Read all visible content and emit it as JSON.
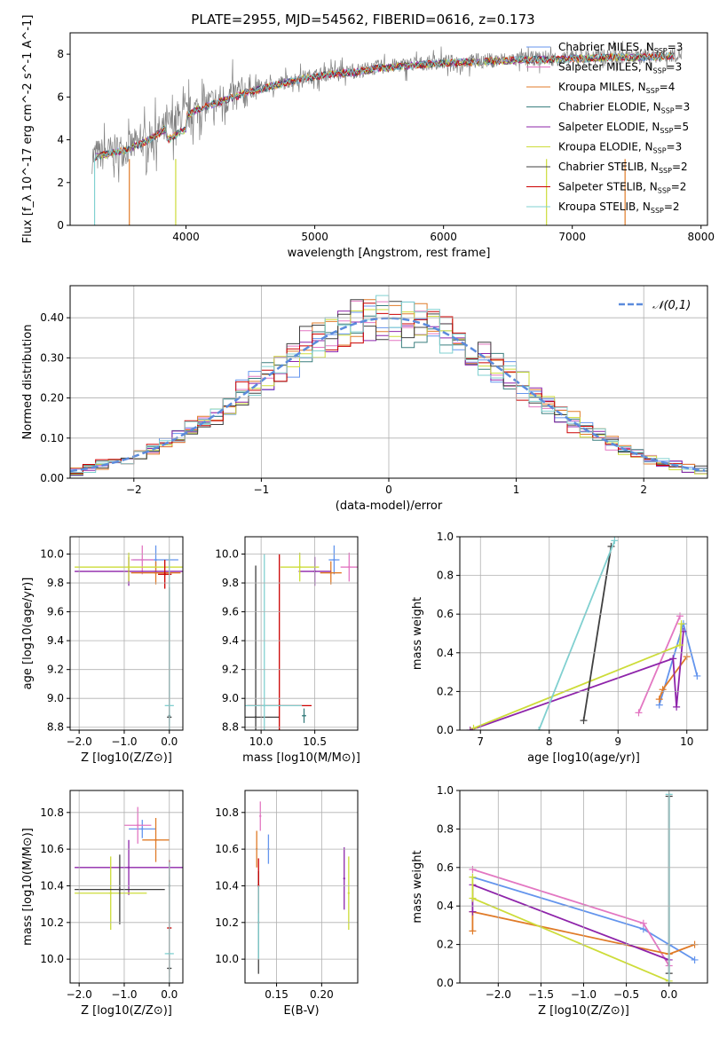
{
  "colors": {
    "Chabrier MILES": "#6495ed",
    "Salpeter MILES": "#e377c2",
    "Kroupa MILES": "#e07b28",
    "Chabrier ELODIE": "#3a7f7f",
    "Salpeter ELODIE": "#8e24aa",
    "Kroupa ELODIE": "#cddc39",
    "Chabrier STELIB": "#404040",
    "Salpeter STELIB": "#cc0000",
    "Kroupa STELIB": "#80d0d0",
    "data": "#808080"
  },
  "chart_data": [
    {
      "id": "spectrum",
      "type": "line",
      "title": "PLATE=2955, MJD=54562, FIBERID=0616, z=0.173",
      "xlabel": "wavelength [Angstrom, rest frame]",
      "ylabel": "Flux [f_λ 10^-17 erg cm^-2 s^-1 A^-1]",
      "xlim": [
        3100,
        8050
      ],
      "ylim": [
        0,
        9
      ],
      "xticks": [
        4000,
        5000,
        6000,
        7000,
        8000
      ],
      "yticks": [
        0,
        2,
        4,
        6,
        8
      ],
      "grid": false,
      "legend_position": "right",
      "data_envelope": {
        "x": [
          3270,
          3400,
          3550,
          3700,
          3900,
          4100,
          4300,
          4500,
          4700,
          4900,
          5100,
          5300,
          5500,
          5700,
          5900,
          6100,
          6300,
          6500,
          6700,
          6900,
          7100,
          7300,
          7500,
          7700,
          7850
        ],
        "y": [
          3.2,
          3.4,
          3.6,
          4.0,
          4.8,
          5.5,
          5.9,
          6.3,
          6.6,
          6.9,
          7.1,
          7.2,
          7.4,
          7.5,
          7.6,
          7.65,
          7.7,
          7.75,
          7.8,
          7.8,
          7.85,
          7.9,
          7.9,
          7.95,
          8.0
        ]
      },
      "series": [
        {
          "name": "Chabrier MILES",
          "nssp": "3"
        },
        {
          "name": "Salpeter MILES",
          "nssp": "3"
        },
        {
          "name": "Kroupa MILES",
          "nssp": "4"
        },
        {
          "name": "Chabrier ELODIE",
          "nssp": "3"
        },
        {
          "name": "Salpeter ELODIE",
          "nssp": "5"
        },
        {
          "name": "Kroupa ELODIE",
          "nssp": "3"
        },
        {
          "name": "Chabrier STELIB",
          "nssp": "2"
        },
        {
          "name": "Salpeter STELIB",
          "nssp": "2"
        },
        {
          "name": "Kroupa STELIB",
          "nssp": "2"
        }
      ]
    },
    {
      "id": "hist",
      "type": "bar",
      "xlabel": "(data-model)/error",
      "ylabel": "Normed distribution",
      "xlim": [
        -2.5,
        2.5
      ],
      "ylim": [
        0,
        0.48
      ],
      "xticks": [
        -2,
        -1,
        0,
        1,
        2
      ],
      "yticks": [
        0.0,
        0.1,
        0.2,
        0.3,
        0.4
      ],
      "grid": true,
      "legend_position": "top-right",
      "legend": [
        "𝒩(0,1)"
      ],
      "bin_width": 0.1,
      "gaussian": {
        "mean": 0,
        "sigma": 1
      }
    },
    {
      "id": "age_vs_Z",
      "type": "scatter",
      "xlabel": "Z [log10(Z/Z⊙)]",
      "ylabel": "age  [log10(age/yr)]",
      "xlim": [
        -2.2,
        0.3
      ],
      "ylim": [
        8.78,
        10.12
      ],
      "xticks": [
        -2,
        -1,
        0
      ],
      "yticks": [
        8.8,
        9.0,
        9.2,
        9.4,
        9.6,
        9.8,
        10.0
      ],
      "grid": true,
      "points": [
        {
          "series": "Chabrier MILES",
          "x": -0.3,
          "y": 9.96,
          "xerr": 0.5,
          "yerr": 0.1
        },
        {
          "series": "Salpeter MILES",
          "x": -0.6,
          "y": 9.96,
          "xerr": 0.25,
          "yerr": 0.1
        },
        {
          "series": "Kroupa MILES",
          "x": -0.3,
          "y": 9.87,
          "xerr": 0.55,
          "yerr": 0.08
        },
        {
          "series": "Chabrier ELODIE",
          "x": 0.0,
          "y": 8.88,
          "xerr": 0.02,
          "yerr": 0.05
        },
        {
          "series": "Salpeter ELODIE",
          "x": -0.9,
          "y": 9.88,
          "xerr": 1.2,
          "yerr": 0.1
        },
        {
          "series": "Kroupa ELODIE",
          "x": -0.9,
          "y": 9.91,
          "xerr": 1.2,
          "yerr": 0.1
        },
        {
          "series": "Chabrier STELIB",
          "x": 0.0,
          "y": 8.87,
          "xerr": 0.05,
          "yerr": 0.9
        },
        {
          "series": "Salpeter STELIB",
          "x": -0.1,
          "y": 9.86,
          "xerr": 0.15,
          "yerr": 0.1
        },
        {
          "series": "Kroupa STELIB",
          "x": 0.0,
          "y": 8.95,
          "xerr": 0.1,
          "yerr": 1.05
        }
      ]
    },
    {
      "id": "age_vs_mass",
      "type": "scatter",
      "xlabel": "mass [log10(M/M⊙)]",
      "xlim": [
        9.85,
        10.9
      ],
      "ylim": [
        8.78,
        10.12
      ],
      "xticks": [
        10.0,
        10.5
      ],
      "yticks": [
        8.8,
        9.0,
        9.2,
        9.4,
        9.6,
        9.8,
        10.0
      ],
      "grid": true,
      "points": [
        {
          "series": "Chabrier MILES",
          "x": 10.68,
          "y": 9.96,
          "xerr": 0.05,
          "yerr": 0.1
        },
        {
          "series": "Salpeter MILES",
          "x": 10.82,
          "y": 9.91,
          "xerr": 0.08,
          "yerr": 0.1
        },
        {
          "series": "Kroupa MILES",
          "x": 10.65,
          "y": 9.87,
          "xerr": 0.1,
          "yerr": 0.08
        },
        {
          "series": "Chabrier ELODIE",
          "x": 10.4,
          "y": 8.88,
          "xerr": 0.02,
          "yerr": 0.05
        },
        {
          "series": "Salpeter ELODIE",
          "x": 10.5,
          "y": 9.88,
          "xerr": 0.15,
          "yerr": 0.1
        },
        {
          "series": "Kroupa ELODIE",
          "x": 10.36,
          "y": 9.91,
          "xerr": 0.18,
          "yerr": 0.1
        },
        {
          "series": "Chabrier STELIB",
          "x": 9.95,
          "y": 8.87,
          "xerr": 0.22,
          "yerr": 1.05
        },
        {
          "series": "Salpeter STELIB",
          "x": 10.17,
          "y": 8.95,
          "xerr": 0.3,
          "yerr": 1.05
        },
        {
          "series": "Kroupa STELIB",
          "x": 10.03,
          "y": 8.95,
          "xerr": 0.35,
          "yerr": 1.05
        }
      ]
    },
    {
      "id": "weight_vs_age",
      "type": "line",
      "xlabel": "age  [log10(age/yr)]",
      "ylabel": "mass weight",
      "xlim": [
        6.7,
        10.3
      ],
      "ylim": [
        0,
        1
      ],
      "xticks": [
        7,
        8,
        9,
        10
      ],
      "yticks": [
        0.0,
        0.2,
        0.4,
        0.6,
        0.8,
        1.0
      ],
      "grid": true,
      "series": [
        {
          "name": "Chabrier MILES",
          "x": [
            9.6,
            9.95,
            10.15
          ],
          "y": [
            0.13,
            0.55,
            0.28
          ]
        },
        {
          "name": "Salpeter MILES",
          "x": [
            9.3,
            9.9
          ],
          "y": [
            0.09,
            0.59
          ]
        },
        {
          "name": "Kroupa MILES",
          "x": [
            9.6,
            9.65,
            10.0
          ],
          "y": [
            0.16,
            0.21,
            0.38
          ]
        },
        {
          "name": "Salpeter ELODIE",
          "x": [
            6.85,
            9.8,
            9.85,
            9.95
          ],
          "y": [
            0.0,
            0.37,
            0.12,
            0.51
          ]
        },
        {
          "name": "Kroupa ELODIE",
          "x": [
            6.9,
            9.9,
            9.92
          ],
          "y": [
            0.01,
            0.44,
            0.55
          ]
        },
        {
          "name": "Chabrier STELIB",
          "x": [
            8.5,
            8.9
          ],
          "y": [
            0.05,
            0.95
          ]
        },
        {
          "name": "Kroupa STELIB",
          "x": [
            7.85,
            8.95
          ],
          "y": [
            0.0,
            0.98
          ]
        }
      ]
    },
    {
      "id": "mass_vs_Z",
      "type": "scatter",
      "xlabel": "Z [log10(Z/Z⊙)]",
      "ylabel": "mass [log10(M/M⊙)]",
      "xlim": [
        -2.2,
        0.3
      ],
      "ylim": [
        9.87,
        10.92
      ],
      "xticks": [
        -2,
        -1,
        0
      ],
      "yticks": [
        10.0,
        10.2,
        10.4,
        10.6,
        10.8
      ],
      "grid": true,
      "points": [
        {
          "series": "Chabrier MILES",
          "x": -0.6,
          "y": 10.71,
          "xerr": 0.3,
          "yerr": 0.05
        },
        {
          "series": "Salpeter MILES",
          "x": -0.7,
          "y": 10.73,
          "xerr": 0.3,
          "yerr": 0.1
        },
        {
          "series": "Kroupa MILES",
          "x": -0.3,
          "y": 10.65,
          "xerr": 0.3,
          "yerr": 0.12
        },
        {
          "series": "Chabrier ELODIE",
          "x": 0.0,
          "y": 10.4,
          "xerr": 0.02,
          "yerr": 0.05
        },
        {
          "series": "Salpeter ELODIE",
          "x": -0.9,
          "y": 10.5,
          "xerr": 1.2,
          "yerr": 0.15
        },
        {
          "series": "Kroupa ELODIE",
          "x": -1.3,
          "y": 10.36,
          "xerr": 0.8,
          "yerr": 0.2
        },
        {
          "series": "Chabrier STELIB",
          "x": 0.0,
          "y": 9.95,
          "xerr": 0.05,
          "yerr": 0.05
        },
        {
          "series": "Chabrier STELIB",
          "x": -1.1,
          "y": 10.38,
          "xerr": 1.0,
          "yerr": 0.19
        },
        {
          "series": "Salpeter STELIB",
          "x": 0.0,
          "y": 10.17,
          "xerr": 0.05,
          "yerr": 0.37
        },
        {
          "series": "Kroupa STELIB",
          "x": 0.0,
          "y": 10.03,
          "xerr": 0.1,
          "yerr": 0.5
        }
      ]
    },
    {
      "id": "mass_vs_ebv",
      "type": "scatter",
      "xlabel": "E(B-V)",
      "xlim": [
        0.115,
        0.24
      ],
      "ylim": [
        9.87,
        10.92
      ],
      "xticks": [
        0.15,
        0.2
      ],
      "yticks": [
        10.0,
        10.2,
        10.4,
        10.6,
        10.8
      ],
      "grid": true,
      "points": [
        {
          "series": "Chabrier MILES",
          "x": 0.141,
          "y": 10.6,
          "yerr": 0.08
        },
        {
          "series": "Salpeter MILES",
          "x": 0.132,
          "y": 10.78,
          "yerr": 0.08
        },
        {
          "series": "Kroupa MILES",
          "x": 0.128,
          "y": 10.6,
          "yerr": 0.1
        },
        {
          "series": "Chabrier ELODIE",
          "x": 0.13,
          "y": 10.4,
          "yerr": 0.03
        },
        {
          "series": "Salpeter ELODIE",
          "x": 0.225,
          "y": 10.44,
          "yerr": 0.17
        },
        {
          "series": "Kroupa ELODIE",
          "x": 0.23,
          "y": 10.36,
          "yerr": 0.2
        },
        {
          "series": "Chabrier STELIB",
          "x": 0.13,
          "y": 10.2,
          "yerr": 0.28
        },
        {
          "series": "Salpeter STELIB",
          "x": 0.13,
          "y": 10.4,
          "yerr": 0.15
        },
        {
          "series": "Kroupa STELIB",
          "x": 0.13,
          "y": 10.2,
          "yerr": 0.2
        }
      ]
    },
    {
      "id": "weight_vs_Z",
      "type": "line",
      "xlabel": "Z [log10(Z/Z⊙)]",
      "ylabel": "mass weight",
      "xlim": [
        -2.45,
        0.45
      ],
      "ylim": [
        0,
        1
      ],
      "xticks": [
        -2.0,
        -1.5,
        -1.0,
        -0.5,
        0.0
      ],
      "yticks": [
        0.0,
        0.2,
        0.4,
        0.6,
        0.8,
        1.0
      ],
      "grid": true,
      "series": [
        {
          "name": "Chabrier MILES",
          "x": [
            -2.3,
            -0.3,
            0.0,
            0.3
          ],
          "y": [
            0.55,
            0.28,
            0.2,
            0.12
          ]
        },
        {
          "name": "Salpeter MILES",
          "x": [
            -2.3,
            -0.3,
            0.0
          ],
          "y": [
            0.59,
            0.31,
            0.09
          ]
        },
        {
          "name": "Kroupa MILES",
          "x": [
            -2.3,
            -2.3,
            0.0,
            0.3
          ],
          "y": [
            0.27,
            0.37,
            0.15,
            0.2
          ]
        },
        {
          "name": "Salpeter ELODIE",
          "x": [
            -2.3,
            -2.3,
            0.0
          ],
          "y": [
            0.37,
            0.51,
            0.12
          ]
        },
        {
          "name": "Kroupa ELODIE",
          "x": [
            -2.3,
            -2.3,
            0.0
          ],
          "y": [
            0.55,
            0.44,
            0.01
          ]
        },
        {
          "name": "Chabrier STELIB",
          "x": [
            0.0,
            0.0
          ],
          "y": [
            0.05,
            0.97
          ]
        },
        {
          "name": "Kroupa STELIB",
          "x": [
            0.0,
            0.0
          ],
          "y": [
            0.0,
            0.98
          ]
        }
      ]
    }
  ]
}
